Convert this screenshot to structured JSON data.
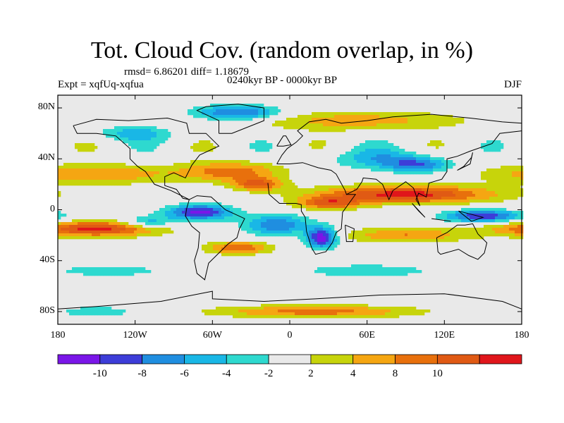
{
  "title": "Tot. Cloud Cov. (random overlap, in %)",
  "stats": "rmsd= 6.86201 diff= 1.18679",
  "experiment": "Expt = xqfUq-xqfua",
  "period": "0240kyr BP - 0000kyr BP",
  "season": "DJF",
  "map": {
    "projection": "cylindrical equidistant",
    "lon_range": [
      -180,
      180
    ],
    "lat_range": [
      -90,
      90
    ],
    "lat_ticks": [
      "80N",
      "40N",
      "0",
      "40S",
      "80S"
    ],
    "lat_tick_values": [
      80,
      40,
      0,
      -40,
      -80
    ],
    "lon_ticks": [
      "180",
      "120W",
      "60W",
      "0",
      "60E",
      "120E",
      "180"
    ],
    "lon_tick_values": [
      -180,
      -120,
      -60,
      0,
      60,
      120,
      180
    ]
  },
  "colorbar": {
    "labels": [
      "-10",
      "-8",
      "-6",
      "-4",
      "-2",
      "2",
      "4",
      "8",
      "10"
    ],
    "colors": [
      "#7a16e8",
      "#3d3dd8",
      "#1f8ee0",
      "#19b7e6",
      "#2ed9cf",
      "#e9e9e9",
      "#c7d40b",
      "#f5a612",
      "#e8700c",
      "#e05a14",
      "#e0161b"
    ]
  }
}
